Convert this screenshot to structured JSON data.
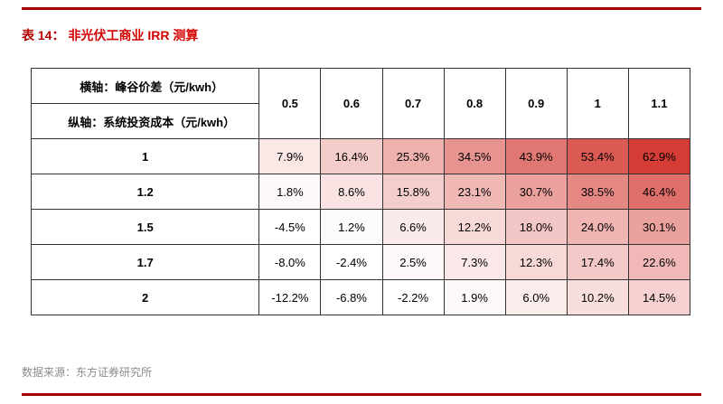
{
  "page": {
    "table_label": "表 14：",
    "title": "非光伏工商业 IRR 测算",
    "source": "数据来源：东方证券研究所",
    "accent_color": "#a50000",
    "title_color": "#d40000"
  },
  "chart_data": {
    "type": "heatmap",
    "title": "非光伏工商业 IRR 测算",
    "x_axis_label": "横轴：峰谷价差（元/kwh）",
    "y_axis_label": "纵轴：系统投资成本（元/kwh）",
    "columns": [
      "0.5",
      "0.6",
      "0.7",
      "0.8",
      "0.9",
      "1",
      "1.1"
    ],
    "rows": [
      "1",
      "1.2",
      "1.5",
      "1.7",
      "2"
    ],
    "values": [
      [
        7.9,
        16.4,
        25.3,
        34.5,
        43.9,
        53.4,
        62.9
      ],
      [
        1.8,
        8.6,
        15.8,
        23.1,
        30.7,
        38.5,
        46.4
      ],
      [
        -4.5,
        1.2,
        6.6,
        12.2,
        18.0,
        24.0,
        30.1
      ],
      [
        -8.0,
        -2.4,
        2.5,
        7.3,
        12.3,
        17.4,
        22.6
      ],
      [
        -12.2,
        -6.8,
        -2.2,
        1.9,
        6.0,
        10.2,
        14.5
      ]
    ],
    "value_format": "percent",
    "heatmap": {
      "min_color": "#ffffff",
      "max_color": "#d43c35",
      "scale_min": 0,
      "scale_max": 63
    }
  }
}
